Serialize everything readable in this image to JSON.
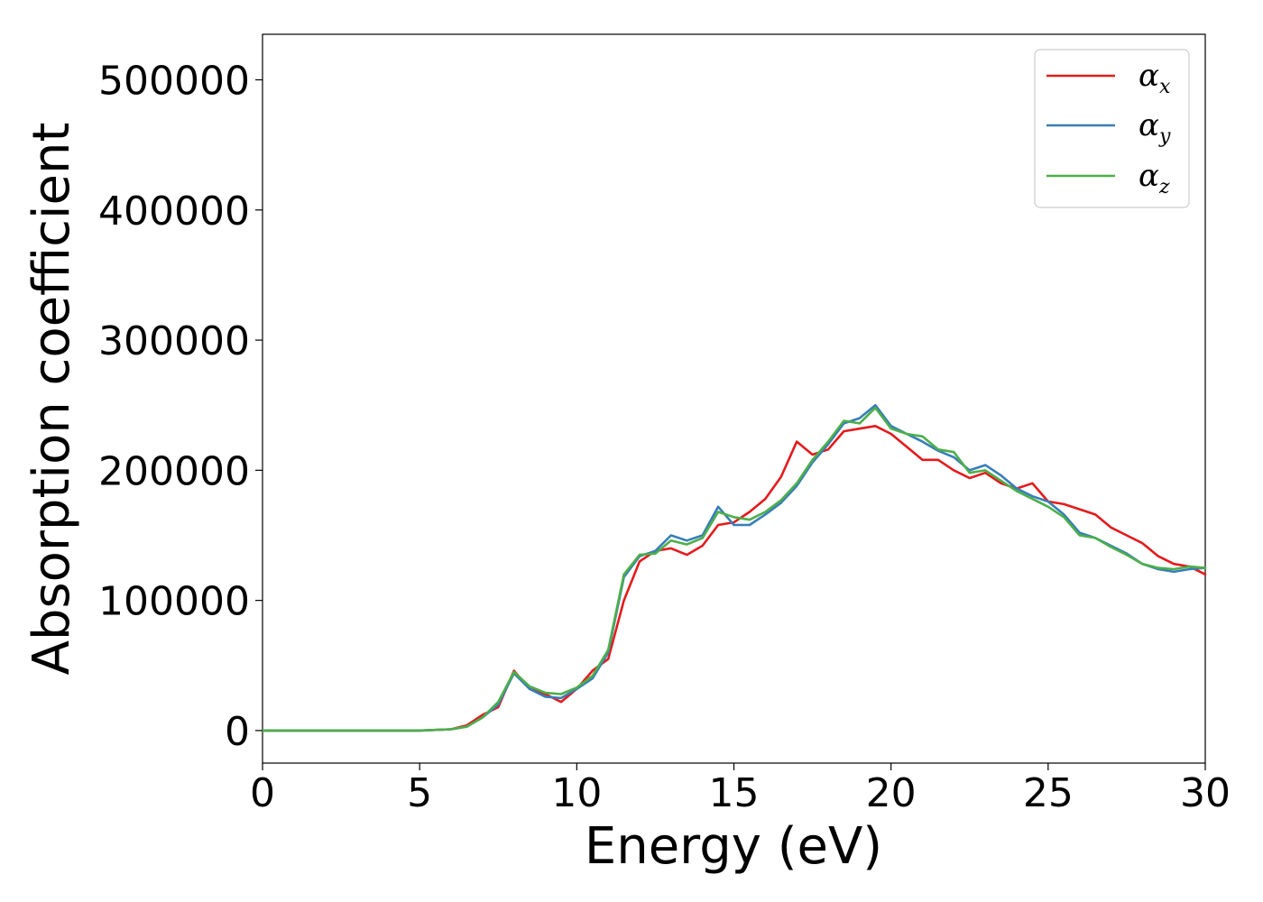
{
  "chart_data": {
    "type": "line",
    "xlabel": "Energy (eV)",
    "ylabel": "Absorption coefficient",
    "xlim": [
      0,
      30
    ],
    "ylim": [
      -25000,
      535000
    ],
    "xticks": [
      0,
      5,
      10,
      15,
      20,
      25,
      30
    ],
    "yticks": [
      0,
      100000,
      200000,
      300000,
      400000,
      500000
    ],
    "grid": false,
    "legend_position": "top-right",
    "x": [
      0,
      5,
      6,
      6.5,
      7,
      7.5,
      8,
      8.5,
      9,
      9.5,
      10,
      10.5,
      11,
      11.5,
      12,
      12.5,
      13,
      13.5,
      14,
      14.5,
      15,
      15.5,
      16,
      16.5,
      17,
      17.5,
      18,
      18.5,
      19,
      19.5,
      20,
      20.5,
      21,
      21.5,
      22,
      22.5,
      23,
      23.5,
      24,
      24.5,
      25,
      25.5,
      26,
      26.5,
      27,
      27.5,
      28,
      28.5,
      29,
      29.5,
      30
    ],
    "series": [
      {
        "name": "α",
        "subscript": "x",
        "color": "#e41a1c",
        "values": [
          0,
          0,
          1000,
          4000,
          12000,
          18000,
          46000,
          32000,
          28000,
          22000,
          32000,
          46000,
          55000,
          100000,
          130000,
          138000,
          140000,
          135000,
          142000,
          158000,
          160000,
          168000,
          178000,
          195000,
          222000,
          212000,
          216000,
          230000,
          232000,
          234000,
          228000,
          218000,
          208000,
          208000,
          200000,
          194000,
          198000,
          190000,
          186000,
          190000,
          176000,
          174000,
          170000,
          166000,
          156000,
          150000,
          144000,
          134000,
          128000,
          126000,
          120000
        ]
      },
      {
        "name": "α",
        "subscript": "y",
        "color": "#377eb8",
        "values": [
          0,
          0,
          1000,
          3000,
          10000,
          20000,
          44000,
          32000,
          26000,
          25000,
          32000,
          40000,
          60000,
          118000,
          134000,
          138000,
          150000,
          146000,
          150000,
          172000,
          158000,
          158000,
          166000,
          175000,
          188000,
          206000,
          220000,
          236000,
          240000,
          250000,
          234000,
          228000,
          222000,
          215000,
          210000,
          200000,
          204000,
          196000,
          186000,
          180000,
          176000,
          166000,
          152000,
          148000,
          142000,
          136000,
          128000,
          124000,
          122000,
          124000,
          125000
        ]
      },
      {
        "name": "α",
        "subscript": "z",
        "color": "#4daf4a",
        "values": [
          0,
          0,
          1000,
          3000,
          10000,
          22000,
          45000,
          34000,
          29000,
          28000,
          33000,
          42000,
          62000,
          120000,
          135000,
          136000,
          146000,
          143000,
          148000,
          168000,
          164000,
          162000,
          168000,
          177000,
          190000,
          208000,
          222000,
          238000,
          236000,
          248000,
          232000,
          228000,
          226000,
          216000,
          214000,
          198000,
          200000,
          192000,
          184000,
          178000,
          172000,
          164000,
          150000,
          148000,
          141000,
          135000,
          128000,
          125000,
          124000,
          126000,
          125000
        ]
      }
    ]
  }
}
